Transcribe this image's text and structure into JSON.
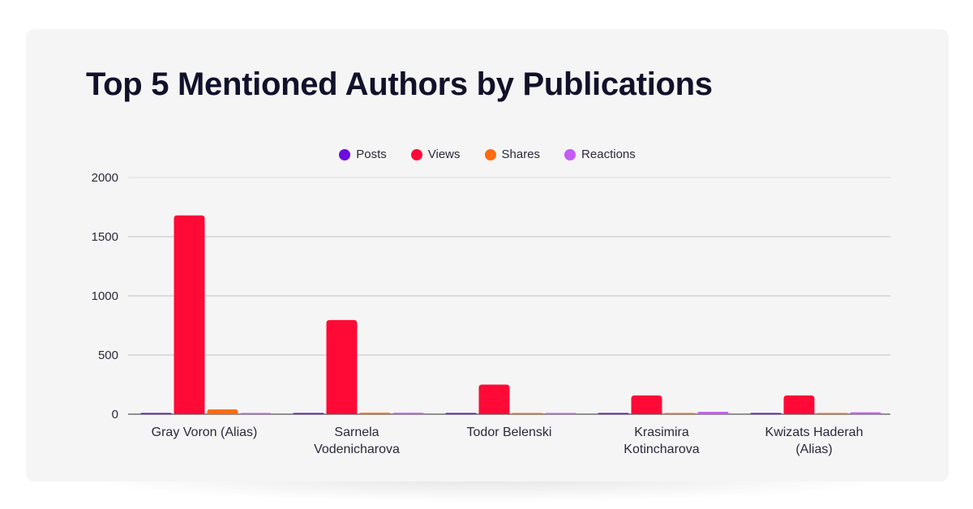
{
  "chart_data": {
    "type": "bar",
    "title": "Top 5 Mentioned Authors by Publications",
    "categories": [
      [
        "Gray Voron (Alias)"
      ],
      [
        "Sarnela",
        "Vodenicharova"
      ],
      [
        "Todor Belenski"
      ],
      [
        "Krasimira",
        "Kotincharova"
      ],
      [
        "Kwizats Haderah",
        "(Alias)"
      ]
    ],
    "series": [
      {
        "name": "Posts",
        "color": "#6a0fe0",
        "values": [
          5,
          4,
          2,
          2,
          2
        ]
      },
      {
        "name": "Views",
        "color": "#ff0a37",
        "values": [
          1680,
          795,
          250,
          158,
          158
        ]
      },
      {
        "name": "Shares",
        "color": "#ff6a10",
        "values": [
          40,
          12,
          3,
          2,
          3
        ]
      },
      {
        "name": "Reactions",
        "color": "#c45cf5",
        "values": [
          2,
          12,
          5,
          20,
          15
        ]
      }
    ],
    "ylim": [
      0,
      2000
    ],
    "yticks": [
      0,
      500,
      1000,
      1500,
      2000
    ],
    "grid": true,
    "legend_position": "top-center"
  }
}
